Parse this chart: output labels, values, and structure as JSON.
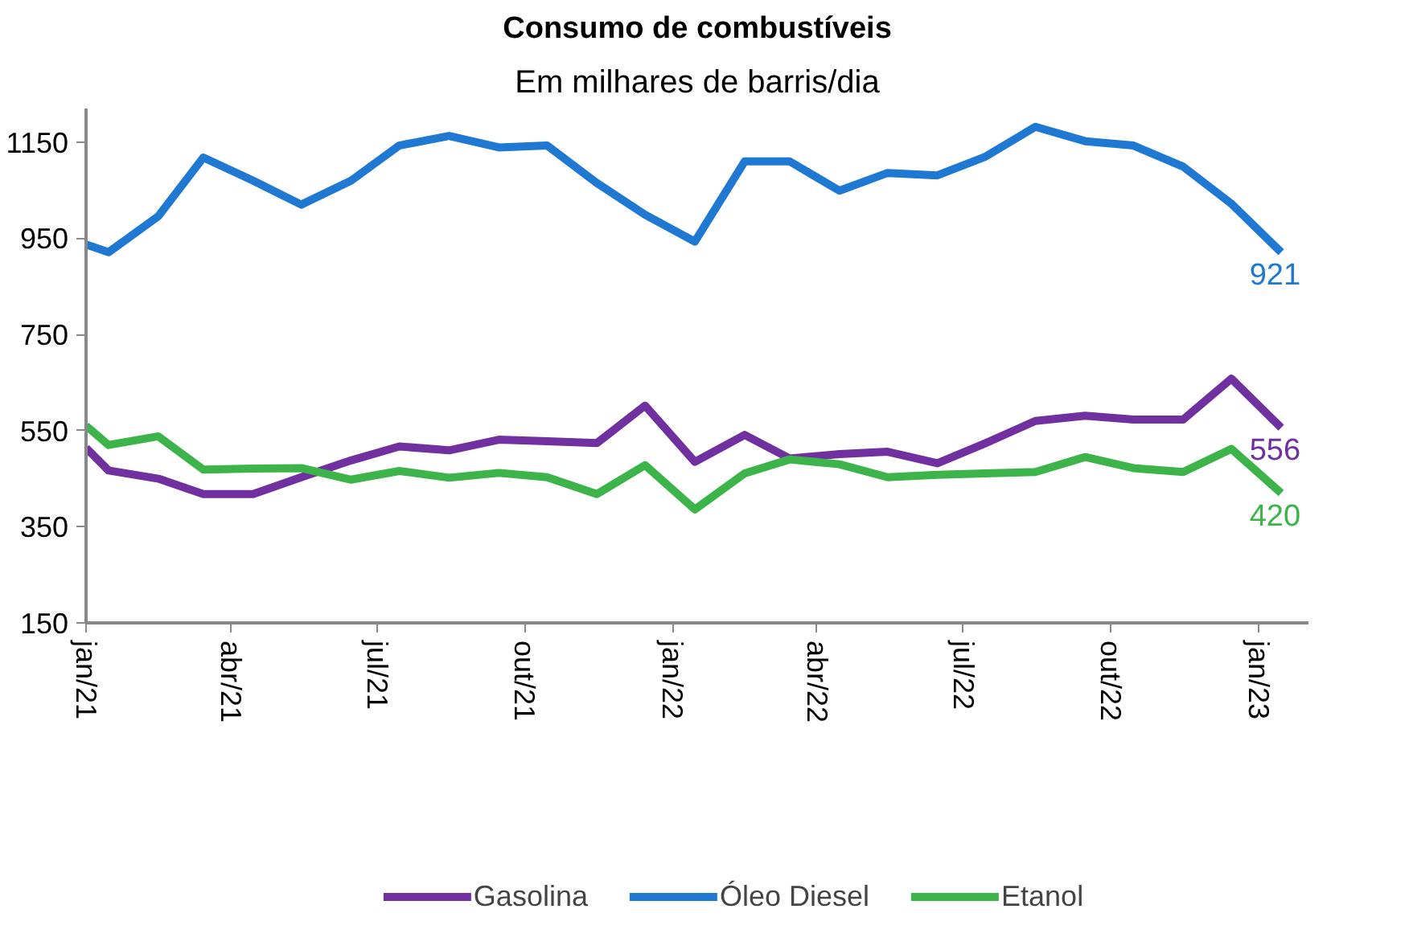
{
  "chart_data": {
    "type": "line",
    "title": "Consumo de combustíveis",
    "subtitle": "Em milhares de barris/dia",
    "x": [
      "2021-01-01",
      "2021-01-15",
      "2021-02-15",
      "2021-03-15",
      "2021-04-15",
      "2021-05-15",
      "2021-06-15",
      "2021-07-15",
      "2021-08-15",
      "2021-09-15",
      "2021-10-15",
      "2021-11-15",
      "2021-12-15",
      "2022-01-15",
      "2022-02-15",
      "2022-03-15",
      "2022-04-15",
      "2022-05-15",
      "2022-06-15",
      "2022-07-15",
      "2022-08-15",
      "2022-09-15",
      "2022-10-15",
      "2022-11-15",
      "2022-12-15",
      "2023-01-15"
    ],
    "xlim": [
      "2021-01-01",
      "2023-02-01"
    ],
    "xticks": [
      {
        "value": "2021-01",
        "label": "jan/21"
      },
      {
        "value": "2021-04",
        "label": "abr/21"
      },
      {
        "value": "2021-07",
        "label": "jul/21"
      },
      {
        "value": "2021-10",
        "label": "out/21"
      },
      {
        "value": "2022-01",
        "label": "jan/22"
      },
      {
        "value": "2022-04",
        "label": "abr/22"
      },
      {
        "value": "2022-07",
        "label": "jul/22"
      },
      {
        "value": "2022-10",
        "label": "out/22"
      },
      {
        "value": "2023-01",
        "label": "jan/23"
      }
    ],
    "ylim": [
      150,
      1220
    ],
    "yticks": [
      150,
      350,
      550,
      750,
      950,
      1150
    ],
    "series": [
      {
        "name": "Gasolina",
        "color": "#7030a0",
        "values": [
          514,
          467,
          450,
          418,
          418,
          453,
          488,
          517,
          509,
          531,
          528,
          524,
          602,
          485,
          541,
          492,
          501,
          506,
          482,
          524,
          570,
          581,
          573,
          573,
          658,
          556
        ],
        "value_labels": [
          null,
          null,
          null,
          null,
          null,
          null,
          null,
          null,
          null,
          null,
          null,
          null,
          null,
          null,
          null,
          null,
          null,
          null,
          null,
          null,
          null,
          null,
          null,
          null,
          null,
          "556"
        ]
      },
      {
        "name": "Óleo Diesel",
        "color": "#1f78d1",
        "values": [
          937,
          921,
          996,
          1118,
          1070,
          1020,
          1070,
          1143,
          1163,
          1139,
          1143,
          1065,
          999,
          943,
          1110,
          1110,
          1049,
          1086,
          1081,
          1120,
          1182,
          1152,
          1143,
          1099,
          1022,
          921
        ],
        "value_labels": [
          null,
          null,
          null,
          null,
          null,
          null,
          null,
          null,
          null,
          null,
          null,
          null,
          null,
          null,
          null,
          null,
          null,
          null,
          null,
          null,
          null,
          null,
          null,
          null,
          null,
          "921"
        ]
      },
      {
        "name": "Etanol",
        "color": "#3cb44a",
        "values": [
          560,
          520,
          538,
          469,
          471,
          472,
          448,
          466,
          452,
          462,
          453,
          418,
          478,
          386,
          461,
          490,
          480,
          453,
          458,
          461,
          464,
          495,
          472,
          464,
          512,
          420
        ],
        "value_labels": [
          null,
          null,
          null,
          null,
          null,
          null,
          null,
          null,
          null,
          null,
          null,
          null,
          null,
          null,
          null,
          null,
          null,
          null,
          null,
          null,
          null,
          null,
          null,
          null,
          null,
          "420"
        ]
      }
    ],
    "legend": "bottom",
    "grid": false,
    "marker": "none",
    "line_style": "solid"
  }
}
